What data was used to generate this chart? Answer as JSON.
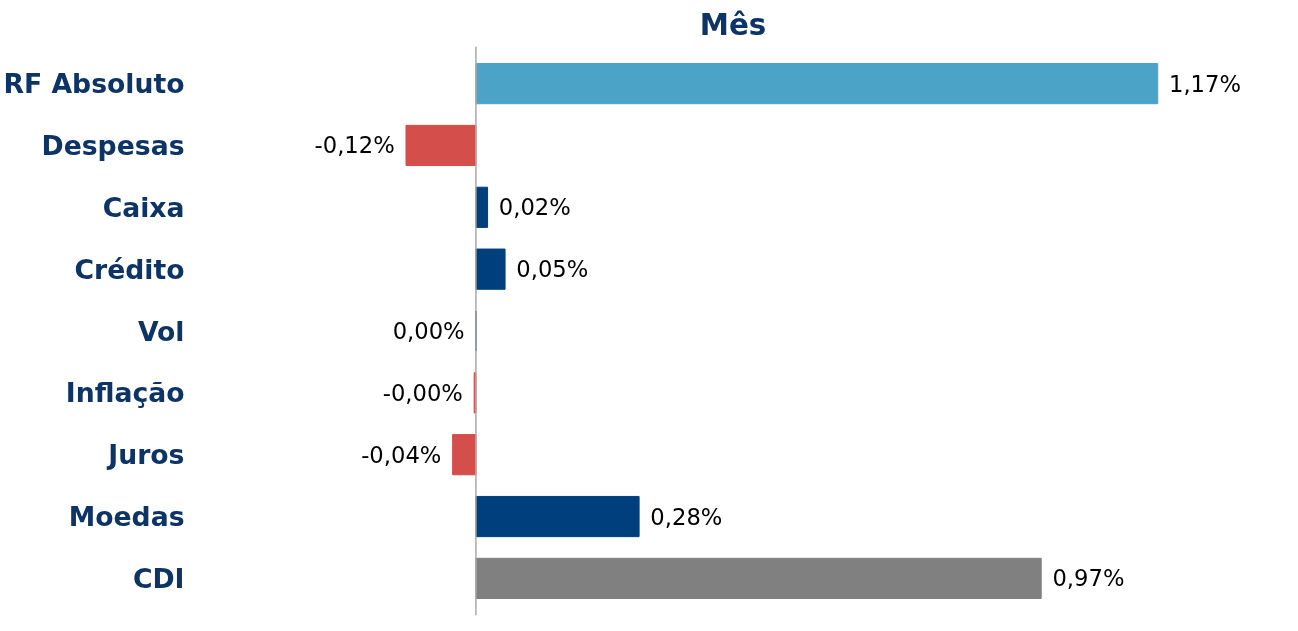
{
  "chart_data": {
    "type": "bar",
    "orientation": "horizontal",
    "title": "Mês",
    "categories": [
      "RF Absoluto",
      "Despesas",
      "Caixa",
      "Crédito",
      "Vol",
      "Inflação",
      "Juros",
      "Moedas",
      "CDI"
    ],
    "values": [
      1.17,
      -0.12,
      0.02,
      0.05,
      0.0,
      -0.003,
      -0.04,
      0.28,
      0.97
    ],
    "colors": [
      "#4ba3c7",
      "#d44e4c",
      "#003f7d",
      "#003f7d",
      "#003f7d",
      "#d44e4c",
      "#d44e4c",
      "#003f7d",
      "#808080"
    ],
    "value_labels": [
      "1,17%",
      "-0,12%",
      "0,02%",
      "0,05%",
      "0,00%",
      "-0,00%",
      "-0,04%",
      "0,28%",
      "0,97%"
    ]
  }
}
